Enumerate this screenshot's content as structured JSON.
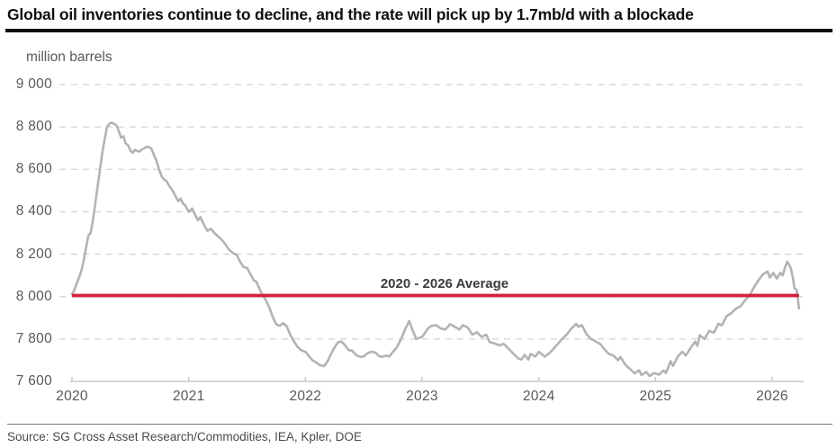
{
  "header": {
    "title": "Global oil inventories continue to decline, and the rate will pick up by 1.7mb/d with a blockade"
  },
  "footer": {
    "source": "Source: SG Cross Asset Research/Commodities, IEA, Kpler, DOE"
  },
  "chart_data": {
    "type": "line",
    "title": "Global oil inventories continue to decline, and the rate will pick up by 1.7mb/d with a blockade",
    "unit_label": "million barrels",
    "xlabel": "",
    "ylabel": "million barrels",
    "xlim": [
      2020,
      2026.27
    ],
    "ylim": [
      7600,
      9000
    ],
    "grid": "horizontal-dashed",
    "legend": "none",
    "colors": {
      "grid": "#d4d4d4",
      "axis": "#c8c8c8",
      "tick_text": "#595959"
    },
    "y_ticks": [
      {
        "value": 9000,
        "label": "9 000"
      },
      {
        "value": 8800,
        "label": "8 800"
      },
      {
        "value": 8600,
        "label": "8 600"
      },
      {
        "value": 8400,
        "label": "8 400"
      },
      {
        "value": 8200,
        "label": "8 200"
      },
      {
        "value": 8000,
        "label": "8 000"
      },
      {
        "value": 7800,
        "label": "7 800"
      },
      {
        "value": 7600,
        "label": "7 600"
      }
    ],
    "x_ticks": [
      {
        "value": 2020,
        "label": "2020"
      },
      {
        "value": 2021,
        "label": "2021"
      },
      {
        "value": 2022,
        "label": "2022"
      },
      {
        "value": 2023,
        "label": "2023"
      },
      {
        "value": 2024,
        "label": "2024"
      },
      {
        "value": 2025,
        "label": "2025"
      },
      {
        "value": 2026,
        "label": "2026"
      }
    ],
    "average_line": {
      "label": "2020 - 2026 Average",
      "value": 8005,
      "x_start": 2020,
      "x_end": 2026.23,
      "color": "#d2203e"
    },
    "series": [
      {
        "name": "Global oil inventories",
        "color": "#b3b3b3",
        "points": [
          [
            2020.0,
            8010
          ],
          [
            2020.02,
            8030
          ],
          [
            2020.04,
            8062
          ],
          [
            2020.06,
            8090
          ],
          [
            2020.08,
            8122
          ],
          [
            2020.1,
            8170
          ],
          [
            2020.12,
            8230
          ],
          [
            2020.14,
            8288
          ],
          [
            2020.16,
            8300
          ],
          [
            2020.18,
            8362
          ],
          [
            2020.2,
            8440
          ],
          [
            2020.22,
            8520
          ],
          [
            2020.24,
            8600
          ],
          [
            2020.26,
            8680
          ],
          [
            2020.28,
            8742
          ],
          [
            2020.3,
            8800
          ],
          [
            2020.32,
            8815
          ],
          [
            2020.34,
            8820
          ],
          [
            2020.36,
            8815
          ],
          [
            2020.38,
            8808
          ],
          [
            2020.4,
            8782
          ],
          [
            2020.42,
            8750
          ],
          [
            2020.44,
            8756
          ],
          [
            2020.46,
            8722
          ],
          [
            2020.48,
            8714
          ],
          [
            2020.5,
            8690
          ],
          [
            2020.52,
            8678
          ],
          [
            2020.54,
            8692
          ],
          [
            2020.56,
            8686
          ],
          [
            2020.58,
            8684
          ],
          [
            2020.6,
            8694
          ],
          [
            2020.62,
            8700
          ],
          [
            2020.64,
            8706
          ],
          [
            2020.66,
            8705
          ],
          [
            2020.68,
            8698
          ],
          [
            2020.7,
            8670
          ],
          [
            2020.72,
            8645
          ],
          [
            2020.75,
            8595
          ],
          [
            2020.77,
            8565
          ],
          [
            2020.79,
            8552
          ],
          [
            2020.81,
            8545
          ],
          [
            2020.83,
            8525
          ],
          [
            2020.85,
            8510
          ],
          [
            2020.87,
            8492
          ],
          [
            2020.89,
            8470
          ],
          [
            2020.91,
            8450
          ],
          [
            2020.93,
            8462
          ],
          [
            2020.95,
            8440
          ],
          [
            2020.97,
            8430
          ],
          [
            2021.0,
            8400
          ],
          [
            2021.03,
            8415
          ],
          [
            2021.06,
            8380
          ],
          [
            2021.08,
            8360
          ],
          [
            2021.1,
            8375
          ],
          [
            2021.13,
            8340
          ],
          [
            2021.16,
            8310
          ],
          [
            2021.19,
            8320
          ],
          [
            2021.22,
            8300
          ],
          [
            2021.25,
            8285
          ],
          [
            2021.28,
            8270
          ],
          [
            2021.31,
            8250
          ],
          [
            2021.34,
            8225
          ],
          [
            2021.38,
            8205
          ],
          [
            2021.41,
            8198
          ],
          [
            2021.44,
            8165
          ],
          [
            2021.47,
            8140
          ],
          [
            2021.5,
            8135
          ],
          [
            2021.53,
            8105
          ],
          [
            2021.56,
            8075
          ],
          [
            2021.58,
            8070
          ],
          [
            2021.6,
            8045
          ],
          [
            2021.63,
            8010
          ],
          [
            2021.66,
            7985
          ],
          [
            2021.69,
            7950
          ],
          [
            2021.72,
            7905
          ],
          [
            2021.75,
            7870
          ],
          [
            2021.78,
            7862
          ],
          [
            2021.81,
            7875
          ],
          [
            2021.84,
            7860
          ],
          [
            2021.87,
            7820
          ],
          [
            2021.9,
            7790
          ],
          [
            2021.93,
            7765
          ],
          [
            2021.96,
            7748
          ],
          [
            2022.0,
            7740
          ],
          [
            2022.03,
            7720
          ],
          [
            2022.06,
            7700
          ],
          [
            2022.09,
            7690
          ],
          [
            2022.12,
            7678
          ],
          [
            2022.16,
            7672
          ],
          [
            2022.19,
            7695
          ],
          [
            2022.22,
            7730
          ],
          [
            2022.25,
            7760
          ],
          [
            2022.28,
            7785
          ],
          [
            2022.31,
            7788
          ],
          [
            2022.34,
            7770
          ],
          [
            2022.37,
            7748
          ],
          [
            2022.4,
            7745
          ],
          [
            2022.44,
            7722
          ],
          [
            2022.47,
            7716
          ],
          [
            2022.5,
            7718
          ],
          [
            2022.53,
            7732
          ],
          [
            2022.56,
            7740
          ],
          [
            2022.6,
            7736
          ],
          [
            2022.63,
            7720
          ],
          [
            2022.66,
            7716
          ],
          [
            2022.69,
            7722
          ],
          [
            2022.72,
            7718
          ],
          [
            2022.75,
            7740
          ],
          [
            2022.78,
            7758
          ],
          [
            2022.82,
            7800
          ],
          [
            2022.86,
            7852
          ],
          [
            2022.89,
            7885
          ],
          [
            2022.92,
            7840
          ],
          [
            2022.95,
            7800
          ],
          [
            2022.97,
            7805
          ],
          [
            2023.0,
            7810
          ],
          [
            2023.05,
            7850
          ],
          [
            2023.08,
            7862
          ],
          [
            2023.12,
            7865
          ],
          [
            2023.16,
            7850
          ],
          [
            2023.2,
            7845
          ],
          [
            2023.24,
            7870
          ],
          [
            2023.28,
            7858
          ],
          [
            2023.32,
            7845
          ],
          [
            2023.35,
            7865
          ],
          [
            2023.39,
            7855
          ],
          [
            2023.43,
            7820
          ],
          [
            2023.47,
            7832
          ],
          [
            2023.51,
            7810
          ],
          [
            2023.55,
            7820
          ],
          [
            2023.58,
            7785
          ],
          [
            2023.62,
            7780
          ],
          [
            2023.66,
            7770
          ],
          [
            2023.7,
            7777
          ],
          [
            2023.74,
            7755
          ],
          [
            2023.78,
            7733
          ],
          [
            2023.82,
            7710
          ],
          [
            2023.85,
            7703
          ],
          [
            2023.88,
            7725
          ],
          [
            2023.91,
            7703
          ],
          [
            2023.93,
            7730
          ],
          [
            2023.97,
            7717
          ],
          [
            2024.0,
            7740
          ],
          [
            2024.05,
            7717
          ],
          [
            2024.09,
            7733
          ],
          [
            2024.12,
            7750
          ],
          [
            2024.16,
            7775
          ],
          [
            2024.2,
            7800
          ],
          [
            2024.24,
            7822
          ],
          [
            2024.28,
            7850
          ],
          [
            2024.32,
            7872
          ],
          [
            2024.34,
            7858
          ],
          [
            2024.37,
            7865
          ],
          [
            2024.41,
            7822
          ],
          [
            2024.45,
            7800
          ],
          [
            2024.49,
            7788
          ],
          [
            2024.53,
            7775
          ],
          [
            2024.56,
            7753
          ],
          [
            2024.6,
            7730
          ],
          [
            2024.64,
            7722
          ],
          [
            2024.68,
            7700
          ],
          [
            2024.7,
            7715
          ],
          [
            2024.74,
            7680
          ],
          [
            2024.78,
            7660
          ],
          [
            2024.82,
            7638
          ],
          [
            2024.86,
            7652
          ],
          [
            2024.88,
            7630
          ],
          [
            2024.92,
            7645
          ],
          [
            2024.95,
            7625
          ],
          [
            2024.99,
            7640
          ],
          [
            2025.03,
            7632
          ],
          [
            2025.07,
            7652
          ],
          [
            2025.09,
            7640
          ],
          [
            2025.13,
            7695
          ],
          [
            2025.15,
            7673
          ],
          [
            2025.19,
            7717
          ],
          [
            2025.23,
            7740
          ],
          [
            2025.26,
            7722
          ],
          [
            2025.3,
            7757
          ],
          [
            2025.34,
            7788
          ],
          [
            2025.36,
            7768
          ],
          [
            2025.38,
            7818
          ],
          [
            2025.42,
            7800
          ],
          [
            2025.46,
            7838
          ],
          [
            2025.5,
            7830
          ],
          [
            2025.54,
            7872
          ],
          [
            2025.57,
            7865
          ],
          [
            2025.61,
            7908
          ],
          [
            2025.65,
            7922
          ],
          [
            2025.69,
            7943
          ],
          [
            2025.73,
            7955
          ],
          [
            2025.77,
            7985
          ],
          [
            2025.81,
            8008
          ],
          [
            2025.84,
            8040
          ],
          [
            2025.88,
            8075
          ],
          [
            2025.92,
            8105
          ],
          [
            2025.96,
            8118
          ],
          [
            2025.98,
            8090
          ],
          [
            2026.01,
            8112
          ],
          [
            2026.04,
            8085
          ],
          [
            2026.07,
            8112
          ],
          [
            2026.09,
            8100
          ],
          [
            2026.11,
            8138
          ],
          [
            2026.13,
            8165
          ],
          [
            2026.15,
            8145
          ],
          [
            2026.16,
            8135
          ],
          [
            2026.18,
            8082
          ],
          [
            2026.19,
            8040
          ],
          [
            2026.21,
            8032
          ],
          [
            2026.23,
            7945
          ]
        ]
      }
    ]
  }
}
